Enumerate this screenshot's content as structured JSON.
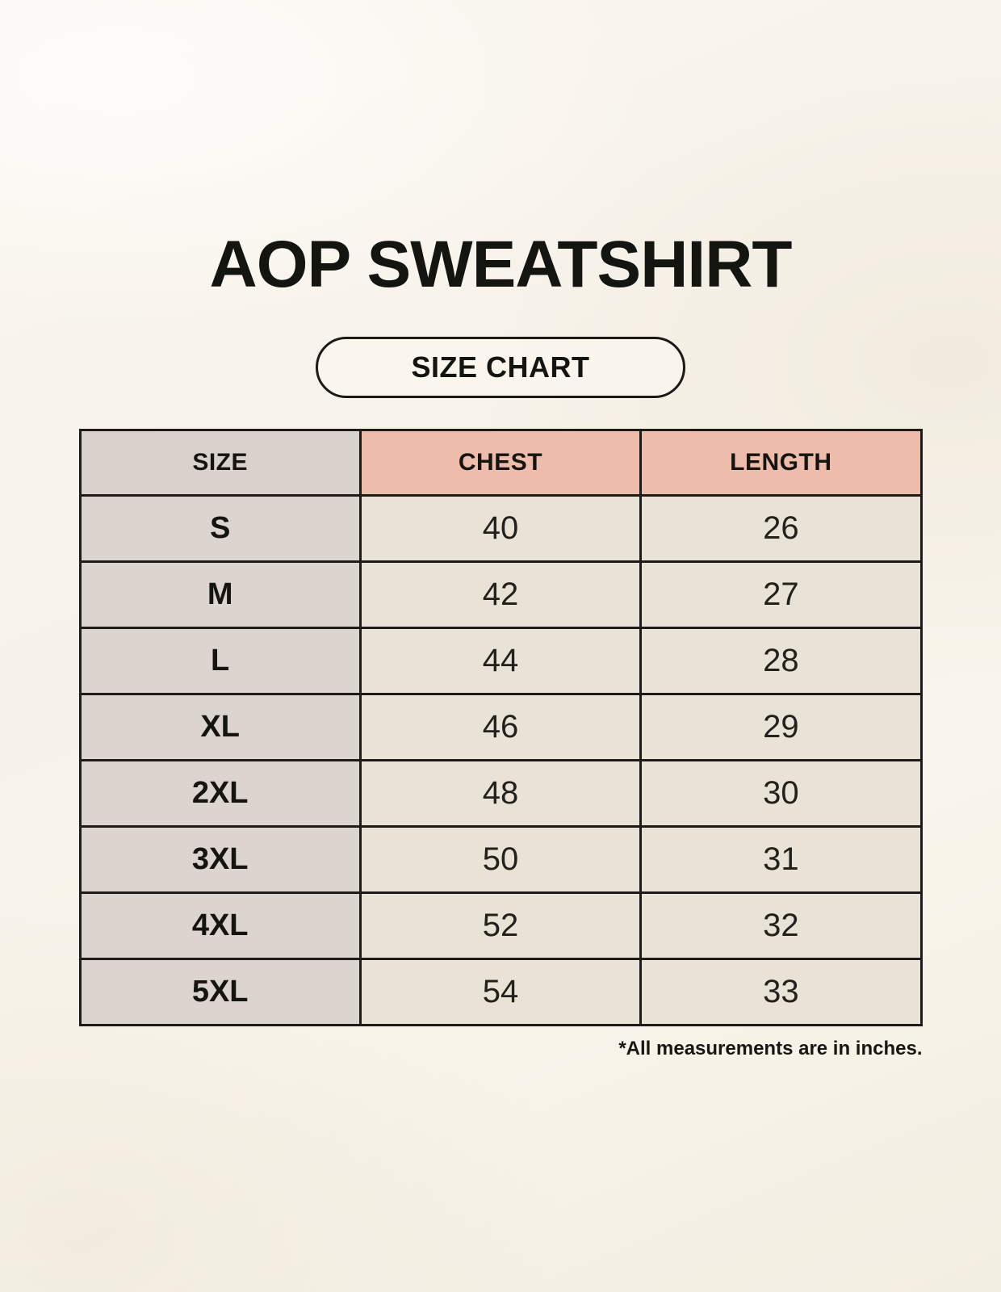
{
  "page": {
    "title": "AOP SWEATSHIRT",
    "badge": "SIZE CHART",
    "footnote": "*All measurements are in inches."
  },
  "table": {
    "headers": [
      "SIZE",
      "CHEST",
      "LENGTH"
    ],
    "rows": [
      [
        "S",
        "40",
        "26"
      ],
      [
        "M",
        "42",
        "27"
      ],
      [
        "L",
        "44",
        "28"
      ],
      [
        "XL",
        "46",
        "29"
      ],
      [
        "2XL",
        "48",
        "30"
      ],
      [
        "3XL",
        "50",
        "31"
      ],
      [
        "4XL",
        "52",
        "32"
      ],
      [
        "5XL",
        "54",
        "33"
      ]
    ]
  },
  "chart_data": {
    "type": "table",
    "title": "AOP SWEATSHIRT",
    "subtitle": "SIZE CHART",
    "columns": [
      "SIZE",
      "CHEST",
      "LENGTH"
    ],
    "rows": [
      {
        "size": "S",
        "chest": 40,
        "length": 26
      },
      {
        "size": "M",
        "chest": 42,
        "length": 27
      },
      {
        "size": "L",
        "chest": 44,
        "length": 28
      },
      {
        "size": "XL",
        "chest": 46,
        "length": 29
      },
      {
        "size": "2XL",
        "chest": 48,
        "length": 30
      },
      {
        "size": "3XL",
        "chest": 50,
        "length": 31
      },
      {
        "size": "4XL",
        "chest": 52,
        "length": 32
      },
      {
        "size": "5XL",
        "chest": 54,
        "length": 33
      }
    ],
    "units": "inches",
    "footnote": "*All measurements are in inches."
  },
  "colors": {
    "page_background": "#f8f4ec",
    "size_column": "#dcd5cf",
    "measure_header": "#eebcab",
    "data_cell": "#e9e2d6",
    "border": "#1d1c19",
    "text": "#15140f"
  }
}
